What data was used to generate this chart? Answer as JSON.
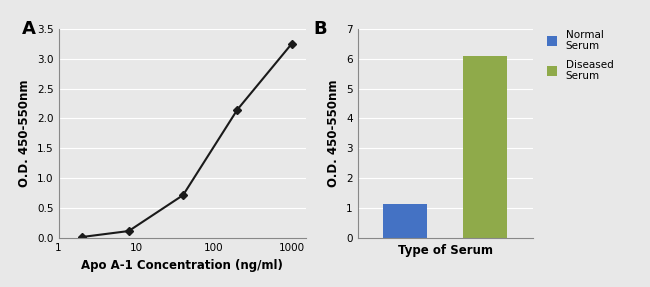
{
  "panel_A": {
    "x": [
      2,
      8,
      40,
      200,
      1000
    ],
    "y": [
      0.02,
      0.12,
      0.72,
      2.15,
      3.25
    ],
    "xlabel": "Apo A-1 Concentration (ng/ml)",
    "ylabel": "O.D. 450-550nm",
    "ylim": [
      0,
      3.5
    ],
    "yticks": [
      0,
      0.5,
      1.0,
      1.5,
      2.0,
      2.5,
      3.0,
      3.5
    ],
    "xticks": [
      1,
      10,
      100,
      1000
    ],
    "xticklabels": [
      "1",
      "10",
      "100",
      "1000"
    ],
    "xlim": [
      1,
      1500
    ],
    "label": "A",
    "line_color": "#1a1a1a",
    "marker": "D",
    "marker_color": "#1a1a1a",
    "marker_size": 4
  },
  "panel_B": {
    "categories": [
      "Normal\nSerum",
      "Diseased\nSerum"
    ],
    "values": [
      1.15,
      6.1
    ],
    "bar_colors": [
      "#4472c4",
      "#8faa4a"
    ],
    "xlabel": "Type of Serum",
    "ylabel": "O.D. 450-550nm",
    "ylim": [
      0,
      7
    ],
    "yticks": [
      0,
      1,
      2,
      3,
      4,
      5,
      6,
      7
    ],
    "label": "B",
    "legend_labels": [
      "Normal\nSerum",
      "Diseased\nSerum"
    ]
  },
  "bg_color": "#e8e8e8",
  "plot_bg": "#e8e8e8",
  "grid_color": "#ffffff",
  "font_size": 7.5,
  "label_fontsize": 8.5,
  "panel_label_fontsize": 13
}
